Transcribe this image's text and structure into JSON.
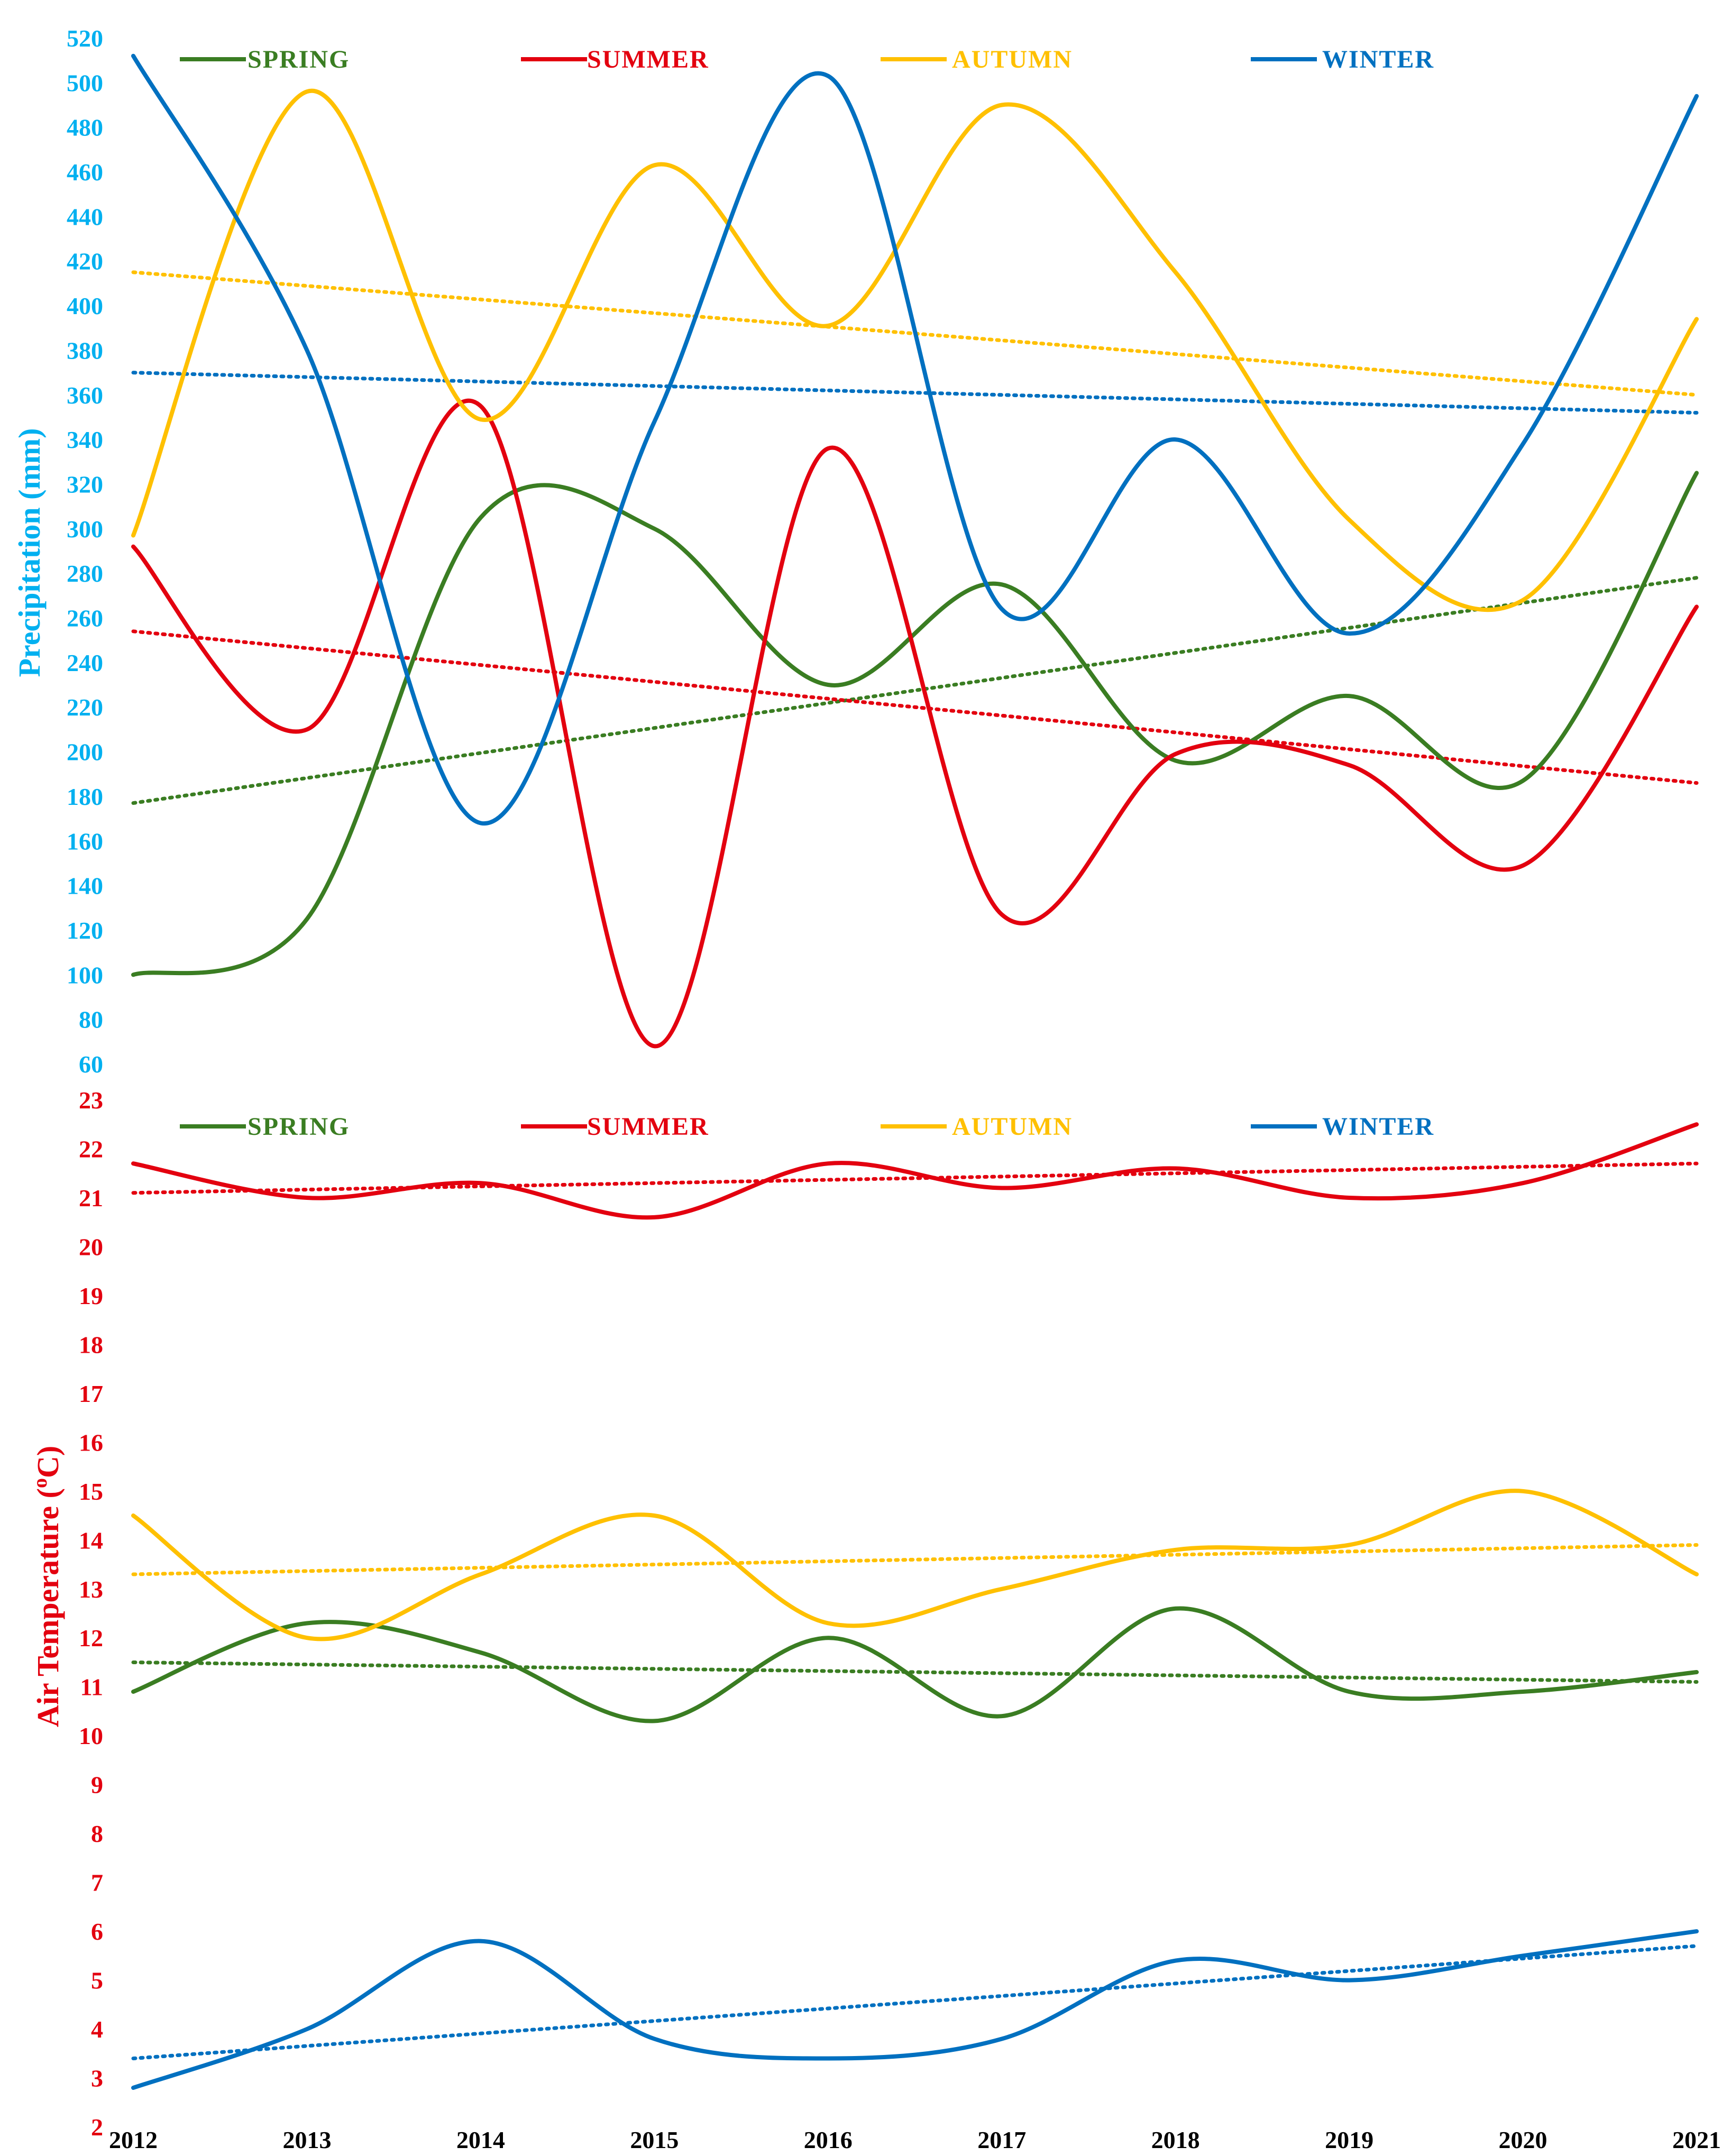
{
  "colors": {
    "spring": "#3a7d22",
    "summer": "#e3000f",
    "autumn": "#ffc000",
    "winter": "#0070c0",
    "precip_axis": "#00b0f0",
    "temp_axis": "#e3000f",
    "x_axis": "#000000"
  },
  "chart_data": [
    {
      "type": "line",
      "title": "",
      "ylabel": "Precipitation  (mm)",
      "xlabel": "",
      "x": [
        2012,
        2013,
        2014,
        2015,
        2016,
        2017,
        2018,
        2019,
        2020,
        2021
      ],
      "ylim": [
        60,
        520
      ],
      "yticks": [
        "60",
        "80",
        "100",
        "120",
        "140",
        "160",
        "180",
        "200",
        "220",
        "240",
        "260",
        "280",
        "300",
        "320",
        "340",
        "360",
        "380",
        "400",
        "420",
        "440",
        "460",
        "480",
        "500",
        "520"
      ],
      "grid": false,
      "legend": "top",
      "series": [
        {
          "name": "SPRING",
          "color_key": "spring",
          "values": [
            100,
            125,
            305,
            300,
            230,
            275,
            196,
            225,
            187,
            325
          ],
          "trend": [
            177,
            278
          ]
        },
        {
          "name": "SUMMER",
          "color_key": "summer",
          "values": [
            292,
            210,
            355,
            68,
            336,
            127,
            199,
            194,
            149,
            265
          ],
          "trend": [
            254,
            186
          ]
        },
        {
          "name": "AUTUMN",
          "color_key": "autumn",
          "values": [
            297,
            496,
            349,
            463,
            391,
            490,
            415,
            304,
            268,
            394
          ],
          "trend": [
            415,
            360
          ]
        },
        {
          "name": "WINTER",
          "color_key": "winter",
          "values": [
            512,
            380,
            168,
            348,
            503,
            264,
            340,
            253,
            338,
            494
          ],
          "trend": [
            370,
            352
          ]
        }
      ]
    },
    {
      "type": "line",
      "title": "",
      "ylabel": "Air Temperature  (°C)",
      "ylabel_main": "Air Temperature  (",
      "ylabel_sup": "o",
      "ylabel_end": "C)",
      "xlabel": "",
      "x": [
        2012,
        2013,
        2014,
        2015,
        2016,
        2017,
        2018,
        2019,
        2020,
        2021
      ],
      "xticks": [
        "2012",
        "2013",
        "2014",
        "2015",
        "2016",
        "2017",
        "2018",
        "2019",
        "2020",
        "2021"
      ],
      "ylim": [
        2,
        23
      ],
      "yticks": [
        "2",
        "3",
        "4",
        "5",
        "6",
        "7",
        "8",
        "9",
        "10",
        "11",
        "12",
        "13",
        "14",
        "15",
        "16",
        "17",
        "18",
        "19",
        "20",
        "21",
        "22",
        "23"
      ],
      "grid": false,
      "legend": "top",
      "series": [
        {
          "name": "SPRING",
          "color_key": "spring",
          "values": [
            10.9,
            12.3,
            11.7,
            10.3,
            12.0,
            10.4,
            12.6,
            10.9,
            10.9,
            11.3
          ],
          "trend": [
            11.5,
            11.1
          ]
        },
        {
          "name": "SUMMER",
          "color_key": "summer",
          "values": [
            21.7,
            21.0,
            21.3,
            20.6,
            21.7,
            21.2,
            21.6,
            21.0,
            21.3,
            22.5
          ],
          "trend": [
            21.1,
            21.7
          ]
        },
        {
          "name": "AUTUMN",
          "color_key": "autumn",
          "values": [
            14.5,
            12.0,
            13.3,
            14.5,
            12.3,
            13.0,
            13.8,
            13.9,
            15.0,
            13.3
          ],
          "trend": [
            13.3,
            13.9
          ]
        },
        {
          "name": "WINTER",
          "color_key": "winter",
          "values": [
            2.8,
            4.0,
            5.8,
            3.8,
            3.4,
            3.8,
            5.4,
            5.0,
            5.5,
            6.0
          ],
          "trend": [
            3.4,
            5.7
          ]
        }
      ]
    }
  ]
}
